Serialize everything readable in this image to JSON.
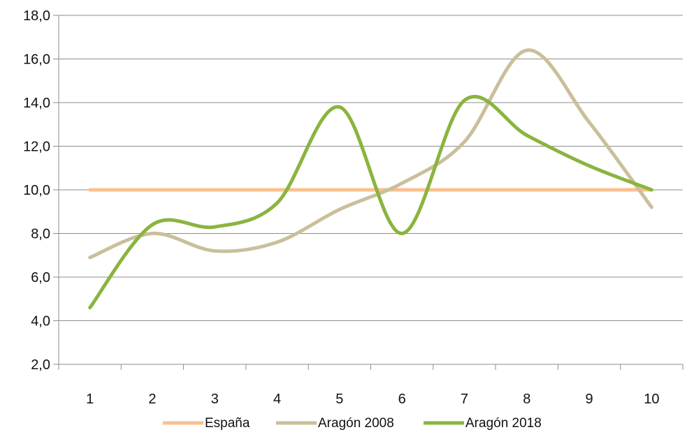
{
  "chart_data": {
    "type": "line",
    "title": "",
    "xlabel": "",
    "ylabel": "",
    "categories": [
      "1",
      "2",
      "3",
      "4",
      "5",
      "6",
      "7",
      "8",
      "9",
      "10"
    ],
    "x": [
      1,
      2,
      3,
      4,
      5,
      6,
      7,
      8,
      9,
      10
    ],
    "ylim": [
      2,
      18
    ],
    "y_ticks": [
      "2,0",
      "4,0",
      "6,0",
      "8,0",
      "10,0",
      "12,0",
      "14,0",
      "16,0",
      "18,0"
    ],
    "grid": "horizontal",
    "legend_position": "bottom",
    "series": [
      {
        "name": "España",
        "color": "#F9C08E",
        "values": [
          10.0,
          10.0,
          10.0,
          10.0,
          10.0,
          10.0,
          10.0,
          10.0,
          10.0,
          10.0
        ]
      },
      {
        "name": "Aragón 2008",
        "color": "#C9BF9A",
        "values": [
          6.9,
          8.0,
          7.2,
          7.6,
          9.1,
          10.3,
          12.2,
          16.4,
          13.1,
          9.2
        ]
      },
      {
        "name": "Aragón 2018",
        "color": "#8BB43F",
        "values": [
          4.6,
          8.4,
          8.3,
          9.4,
          13.8,
          8.0,
          14.1,
          12.5,
          11.1,
          10.0
        ]
      }
    ]
  }
}
